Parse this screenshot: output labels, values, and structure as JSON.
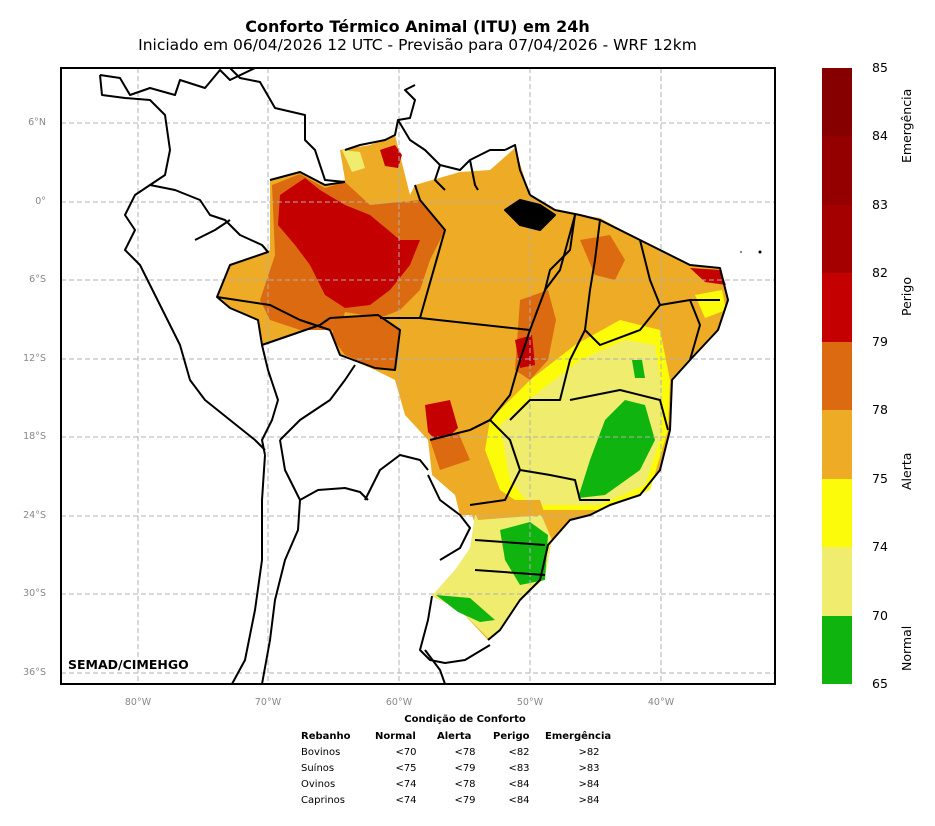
{
  "header": {
    "title": "Conforto Térmico Animal (ITU) em 24h",
    "subtitle": "Iniciado em 06/04/2026 12 UTC - Previsão para 07/04/2026 - WRF 12km"
  },
  "map": {
    "credit": "SEMAD/CIMEHGO",
    "lat_ticks": [
      "6°N",
      "0°",
      "6°S",
      "12°S",
      "18°S",
      "24°S",
      "30°S",
      "36°S"
    ],
    "lon_ticks": [
      "80°W",
      "70°W",
      "60°W",
      "50°W",
      "40°W"
    ],
    "colors": {
      "normal": "#0fb40f",
      "light_yellow": "#f0ec6e",
      "yellow": "#fcfc0a",
      "orange_light": "#eeac26",
      "orange_dark": "#dc6a10",
      "red": "#c40000",
      "dark_red_1": "#a40000",
      "dark_red_2": "#940000",
      "dark_red_3": "#860000"
    }
  },
  "colorbar": {
    "boundaries": [
      "85",
      "84",
      "83",
      "82",
      "79",
      "78",
      "75",
      "74",
      "70",
      "65"
    ],
    "bands": [
      "#860000",
      "#940000",
      "#a40000",
      "#c40000",
      "#dc6a10",
      "#eeac26",
      "#fcfc0a",
      "#f0ec6e",
      "#0fb40f"
    ],
    "categories": [
      "Emergência",
      "Perigo",
      "Alerta",
      "Normal"
    ]
  },
  "table": {
    "title": "Condição de Conforto",
    "headers": [
      "Rebanho",
      "Normal",
      "Alerta",
      "Perigo",
      "Emergência"
    ],
    "rows": [
      [
        "Bovinos",
        "<70",
        "<78",
        "<82",
        ">82"
      ],
      [
        "Suínos",
        "<75",
        "<79",
        "<83",
        ">83"
      ],
      [
        "Ovinos",
        "<74",
        "<78",
        "<84",
        ">84"
      ],
      [
        "Caprinos",
        "<74",
        "<79",
        "<84",
        ">84"
      ]
    ]
  }
}
